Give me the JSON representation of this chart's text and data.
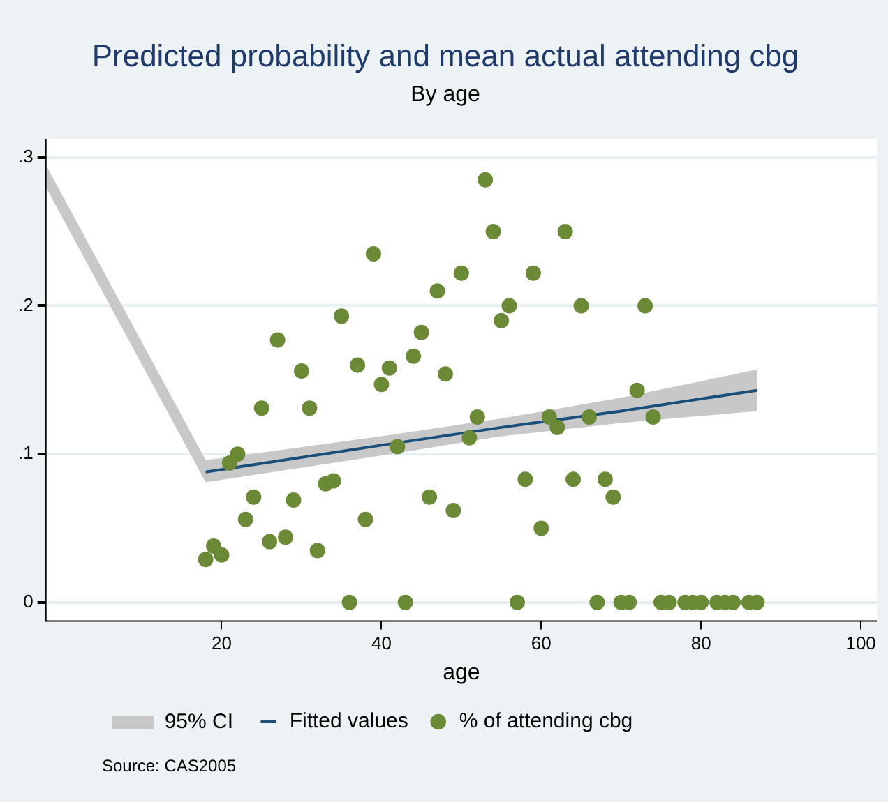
{
  "chart_data": {
    "type": "scatter",
    "title": "Predicted probability and mean actual attending cbg",
    "subtitle": "By age",
    "xlabel": "age",
    "xlim": [
      -2,
      102
    ],
    "xticks": [
      20,
      40,
      60,
      80,
      100
    ],
    "ylim": [
      -0.0125,
      0.3125
    ],
    "yticks": [
      {
        "value": 0,
        "label": "0"
      },
      {
        "value": 0.1,
        "label": ".1"
      },
      {
        "value": 0.2,
        "label": ".2"
      },
      {
        "value": 0.3,
        "label": ".3"
      }
    ],
    "grid": "y",
    "legend": "bottom",
    "marker": "circle",
    "series": [
      {
        "name": "Fitted values",
        "type": "line",
        "color": "#1a4f7a",
        "marker": "none",
        "x": [
          -2,
          18,
          40,
          55,
          70,
          87
        ],
        "values": [
          null,
          0.088,
          0.106,
          0.118,
          0.129,
          0.143
        ],
        "lower": [
          0.28,
          0.081,
          0.099,
          0.112,
          0.121,
          0.129
        ],
        "upper": [
          0.295,
          0.096,
          0.112,
          0.124,
          0.138,
          0.157
        ]
      },
      {
        "name": "% of attending cbg",
        "type": "scatter",
        "color": "#6b8a35",
        "x": [
          18,
          19,
          20,
          21,
          22,
          23,
          24,
          25,
          26,
          27,
          28,
          29,
          30,
          31,
          32,
          33,
          34,
          35,
          36,
          37,
          38,
          39,
          40,
          41,
          42,
          43,
          44,
          45,
          46,
          47,
          48,
          49,
          50,
          51,
          52,
          53,
          54,
          55,
          56,
          57,
          58,
          59,
          60,
          61,
          62,
          63,
          64,
          65,
          66,
          67,
          68,
          69,
          70,
          71,
          72,
          73,
          74,
          75,
          76,
          78,
          79,
          80,
          82,
          83,
          84,
          86,
          87
        ],
        "values": [
          0.029,
          0.038,
          0.032,
          0.094,
          0.1,
          0.056,
          0.071,
          0.131,
          0.041,
          0.177,
          0.044,
          0.069,
          0.156,
          0.131,
          0.035,
          0.08,
          0.082,
          0.193,
          0,
          0.16,
          0.056,
          0.235,
          0.147,
          0.158,
          0.105,
          0,
          0.166,
          0.182,
          0.071,
          0.21,
          0.154,
          0.062,
          0.222,
          0.111,
          0.125,
          0.285,
          0.25,
          0.19,
          0.2,
          0,
          0.083,
          0.222,
          0.05,
          0.125,
          0.118,
          0.25,
          0.083,
          0.2,
          0.125,
          0,
          0.083,
          0.071,
          0,
          0,
          0.143,
          0.2,
          0.125,
          0,
          0,
          0,
          0,
          0,
          0,
          0,
          0,
          0,
          0
        ]
      }
    ],
    "annotations": [
      "95% CI",
      "Source: CAS2005"
    ]
  }
}
